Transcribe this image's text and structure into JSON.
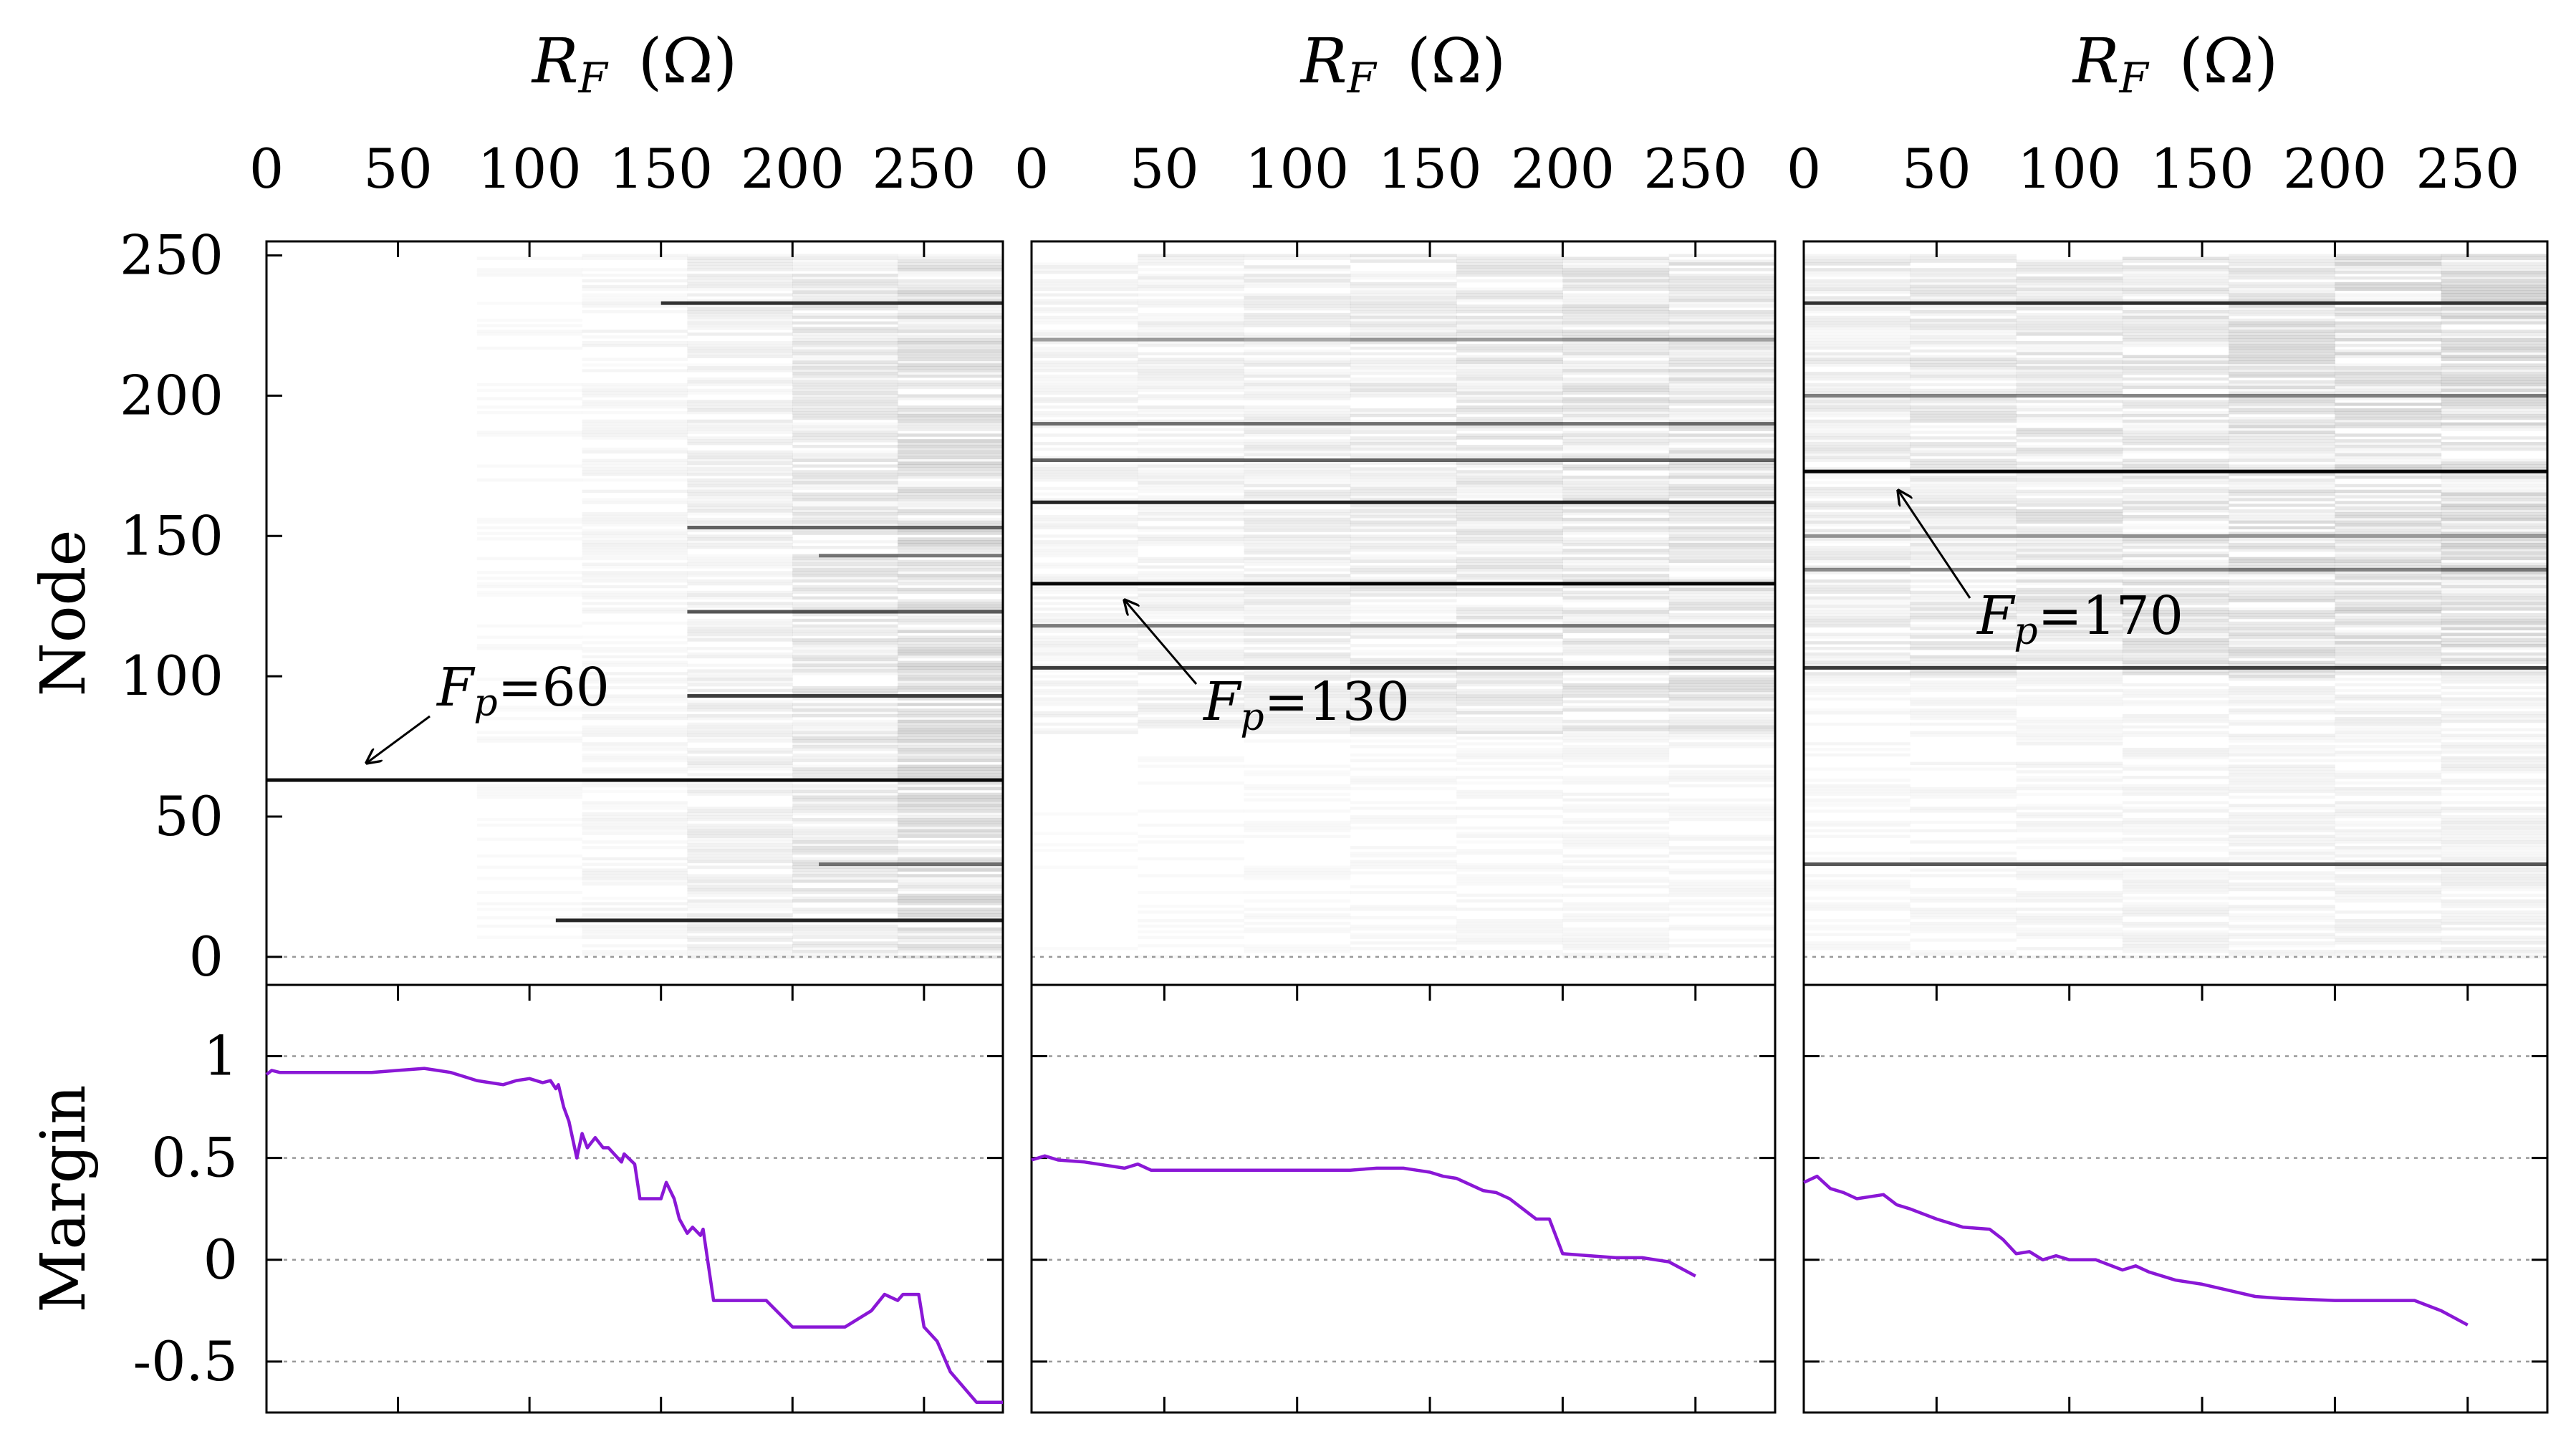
{
  "chart_data": [
    {
      "type": "heatmap",
      "panel": "top-left",
      "xlabel": "R_F (Ω)",
      "ylabel": "Node",
      "xlim": [
        0,
        280
      ],
      "ylim": [
        -10,
        255
      ],
      "x_ticks": [
        0,
        50,
        100,
        150,
        200,
        250
      ],
      "y_ticks": [
        0,
        50,
        100,
        150,
        200,
        250
      ],
      "annotation": {
        "label": "F_p=60",
        "node": 63
      },
      "dark_lines": [
        {
          "node": 63,
          "x_start": 0,
          "x_end": 280,
          "intensity": 0.95
        },
        {
          "node": 13,
          "x_start": 110,
          "x_end": 280,
          "intensity": 0.85
        },
        {
          "node": 93,
          "x_start": 160,
          "x_end": 280,
          "intensity": 0.75
        },
        {
          "node": 123,
          "x_start": 160,
          "x_end": 280,
          "intensity": 0.65
        },
        {
          "node": 153,
          "x_start": 160,
          "x_end": 280,
          "intensity": 0.6
        },
        {
          "node": 233,
          "x_start": 150,
          "x_end": 280,
          "intensity": 0.8
        },
        {
          "node": 143,
          "x_start": 210,
          "x_end": 280,
          "intensity": 0.5
        },
        {
          "node": 33,
          "x_start": 210,
          "x_end": 280,
          "intensity": 0.5
        }
      ]
    },
    {
      "type": "heatmap",
      "panel": "top-middle",
      "xlabel": "R_F (Ω)",
      "xlim": [
        0,
        280
      ],
      "ylim": [
        -10,
        255
      ],
      "x_ticks": [
        0,
        50,
        100,
        150,
        200,
        250
      ],
      "annotation": {
        "label": "F_p=130",
        "node": 133
      },
      "dark_lines": [
        {
          "node": 133,
          "x_start": 0,
          "x_end": 280,
          "intensity": 0.98
        },
        {
          "node": 162,
          "x_start": 0,
          "x_end": 280,
          "intensity": 0.85
        },
        {
          "node": 177,
          "x_start": 0,
          "x_end": 280,
          "intensity": 0.6
        },
        {
          "node": 190,
          "x_start": 0,
          "x_end": 280,
          "intensity": 0.55
        },
        {
          "node": 118,
          "x_start": 0,
          "x_end": 280,
          "intensity": 0.5
        },
        {
          "node": 103,
          "x_start": 0,
          "x_end": 280,
          "intensity": 0.75
        },
        {
          "node": 220,
          "x_start": 0,
          "x_end": 280,
          "intensity": 0.35
        }
      ]
    },
    {
      "type": "heatmap",
      "panel": "top-right",
      "xlabel": "R_F (Ω)",
      "xlim": [
        0,
        280
      ],
      "ylim": [
        -10,
        255
      ],
      "x_ticks": [
        0,
        50,
        100,
        150,
        200,
        250
      ],
      "annotation": {
        "label": "F_p=170",
        "node": 173
      },
      "dark_lines": [
        {
          "node": 173,
          "x_start": 0,
          "x_end": 280,
          "intensity": 0.98
        },
        {
          "node": 233,
          "x_start": 0,
          "x_end": 280,
          "intensity": 0.8
        },
        {
          "node": 103,
          "x_start": 0,
          "x_end": 280,
          "intensity": 0.75
        },
        {
          "node": 33,
          "x_start": 0,
          "x_end": 280,
          "intensity": 0.65
        },
        {
          "node": 138,
          "x_start": 0,
          "x_end": 280,
          "intensity": 0.45
        },
        {
          "node": 200,
          "x_start": 0,
          "x_end": 280,
          "intensity": 0.45
        },
        {
          "node": 150,
          "x_start": 0,
          "x_end": 280,
          "intensity": 0.4
        }
      ]
    },
    {
      "type": "line",
      "panel": "bottom-left",
      "ylabel": "Margin",
      "xlim": [
        0,
        280
      ],
      "ylim": [
        -0.75,
        1.35
      ],
      "y_ticks": [
        1,
        0.5,
        0,
        -0.5
      ],
      "y_tick_labels": [
        "1",
        "0.5",
        "0",
        "-0.5"
      ],
      "color": "#8a17d6",
      "series": [
        {
          "name": "Margin F_p=60",
          "x": [
            0,
            2,
            5,
            40,
            50,
            60,
            65,
            70,
            75,
            80,
            85,
            90,
            95,
            100,
            105,
            108,
            110,
            111,
            113,
            115,
            118,
            120,
            122,
            125,
            128,
            130,
            135,
            136,
            140,
            142,
            145,
            150,
            152,
            155,
            157,
            160,
            162,
            165,
            166,
            170,
            180,
            190,
            200,
            203,
            205,
            210,
            215,
            220,
            230,
            235,
            240,
            242,
            245,
            248,
            250,
            255,
            260,
            270,
            280
          ],
          "y": [
            0.91,
            0.93,
            0.92,
            0.92,
            0.93,
            0.94,
            0.93,
            0.92,
            0.9,
            0.88,
            0.87,
            0.86,
            0.88,
            0.89,
            0.87,
            0.88,
            0.84,
            0.86,
            0.75,
            0.68,
            0.5,
            0.62,
            0.55,
            0.6,
            0.55,
            0.55,
            0.48,
            0.52,
            0.47,
            0.3,
            0.3,
            0.3,
            0.38,
            0.3,
            0.2,
            0.13,
            0.16,
            0.12,
            0.15,
            -0.2,
            -0.2,
            -0.2,
            -0.33,
            -0.33,
            -0.33,
            -0.33,
            -0.33,
            -0.33,
            -0.25,
            -0.17,
            -0.2,
            -0.17,
            -0.17,
            -0.17,
            -0.33,
            -0.4,
            -0.55,
            -0.7,
            -0.7
          ]
        }
      ]
    },
    {
      "type": "line",
      "panel": "bottom-middle",
      "xlim": [
        0,
        280
      ],
      "ylim": [
        -0.75,
        1.35
      ],
      "color": "#8a17d6",
      "series": [
        {
          "name": "Margin F_p=130",
          "x": [
            0,
            5,
            10,
            20,
            25,
            30,
            35,
            40,
            45,
            50,
            60,
            80,
            100,
            120,
            130,
            140,
            145,
            150,
            155,
            160,
            165,
            170,
            175,
            180,
            185,
            190,
            195,
            200,
            210,
            220,
            230,
            235,
            240,
            250
          ],
          "y": [
            0.49,
            0.51,
            0.49,
            0.48,
            0.47,
            0.46,
            0.45,
            0.47,
            0.44,
            0.44,
            0.44,
            0.44,
            0.44,
            0.44,
            0.45,
            0.45,
            0.44,
            0.43,
            0.41,
            0.4,
            0.37,
            0.34,
            0.33,
            0.3,
            0.25,
            0.2,
            0.2,
            0.03,
            0.02,
            0.01,
            0.01,
            0.0,
            -0.01,
            -0.08
          ]
        }
      ]
    },
    {
      "type": "line",
      "panel": "bottom-right",
      "xlim": [
        0,
        280
      ],
      "ylim": [
        -0.75,
        1.35
      ],
      "color": "#8a17d6",
      "series": [
        {
          "name": "Margin F_p=170",
          "x": [
            0,
            5,
            10,
            15,
            20,
            30,
            35,
            40,
            50,
            60,
            70,
            75,
            80,
            85,
            90,
            95,
            100,
            110,
            120,
            125,
            130,
            140,
            150,
            160,
            170,
            180,
            200,
            220,
            230,
            240,
            250
          ],
          "y": [
            0.38,
            0.41,
            0.35,
            0.33,
            0.3,
            0.32,
            0.27,
            0.25,
            0.2,
            0.16,
            0.15,
            0.1,
            0.03,
            0.04,
            0.0,
            0.02,
            0.0,
            0.0,
            -0.05,
            -0.03,
            -0.06,
            -0.1,
            -0.12,
            -0.15,
            -0.18,
            -0.19,
            -0.2,
            -0.2,
            -0.2,
            -0.25,
            -0.32
          ]
        }
      ]
    }
  ]
}
